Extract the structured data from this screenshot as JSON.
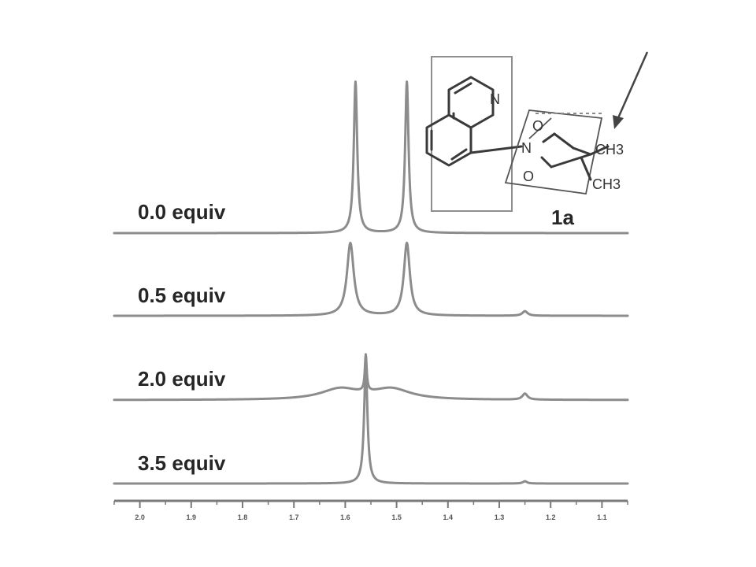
{
  "chart_data": {
    "type": "line",
    "title": "",
    "xlabel": "",
    "ylabel": "",
    "x_reversed": true,
    "xlim": [
      2.05,
      1.05
    ],
    "x_ticks": [
      2.0,
      1.9,
      1.8,
      1.7,
      1.6,
      1.5,
      1.4,
      1.3,
      1.2,
      1.1
    ],
    "x_tick_labels": [
      "2.0",
      "1.9",
      "1.8",
      "1.7",
      "1.6",
      "1.5",
      "1.4",
      "1.3",
      "1.2",
      "1.1"
    ],
    "series": [
      {
        "name": "0.0 equiv",
        "baseline": 0,
        "peaks": [
          {
            "x": 1.58,
            "height": 1.0,
            "width": 0.004
          },
          {
            "x": 1.48,
            "height": 1.0,
            "width": 0.004
          }
        ]
      },
      {
        "name": "0.5 equiv",
        "baseline": 0,
        "peaks": [
          {
            "x": 1.59,
            "height": 0.48,
            "width": 0.008
          },
          {
            "x": 1.48,
            "height": 0.48,
            "width": 0.007
          },
          {
            "x": 1.25,
            "height": 0.03,
            "width": 0.006
          }
        ]
      },
      {
        "name": "2.0 equiv",
        "baseline": 0,
        "peaks": [
          {
            "x": 1.61,
            "height": 0.07,
            "width": 0.045
          },
          {
            "x": 1.51,
            "height": 0.07,
            "width": 0.045
          },
          {
            "x": 1.56,
            "height": 0.24,
            "width": 0.0022
          },
          {
            "x": 1.25,
            "height": 0.04,
            "width": 0.006
          }
        ]
      },
      {
        "name": "3.5 equiv",
        "baseline": 0,
        "peaks": [
          {
            "x": 1.56,
            "height": 0.78,
            "width": 0.004
          },
          {
            "x": 1.25,
            "height": 0.015,
            "width": 0.005
          }
        ]
      }
    ],
    "annotations": {
      "compound_label": "1a",
      "atom_labels": [
        "N",
        "N",
        "O",
        "O",
        "CH3",
        "CH3"
      ]
    },
    "grid": false,
    "legend": "none"
  }
}
